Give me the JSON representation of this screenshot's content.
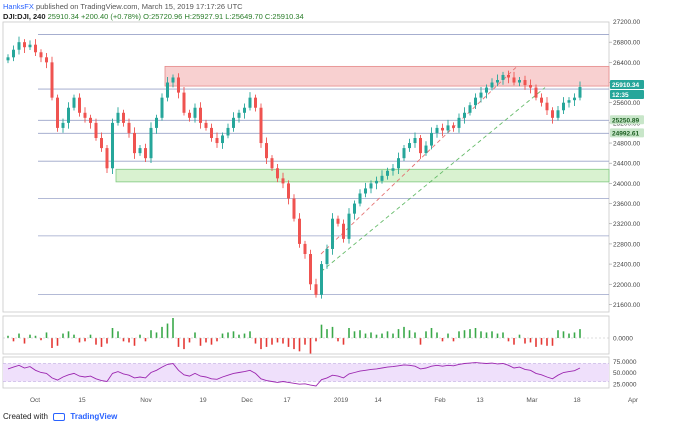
{
  "header": {
    "author": "HanksFX",
    "published_text": "published on TradingView.com, March 15, 2019 17:17:26 UTC",
    "symbol": "DJI:DJI, 240",
    "last": "25910.34",
    "change": "+200.40 (+0.78%)",
    "ohlc": "O:25720.96 H:25927.91 L:25649.70 C:25910.34"
  },
  "footer": {
    "created_with": "Created with",
    "brand": "TradingView"
  },
  "colors": {
    "up": "#26a69a",
    "down": "#ef5350",
    "up_bar": "#3aa94a",
    "down_bar": "#e53935",
    "resistance_zone": "#f8d0d0",
    "support_zone": "#d9f2d0",
    "rsi_band": "#efe0fb",
    "rsi_line": "#9c27b0"
  },
  "chart_data": [
    {
      "type": "candlestick",
      "title": "",
      "price_axis_ticks": [
        26800,
        26400,
        26000,
        25600,
        25200,
        24800,
        24400,
        24000,
        23600,
        23200,
        22800,
        22400,
        22000,
        21600
      ],
      "top_tick_label": "27200.00",
      "time_axis_ticks": [
        "Oct",
        "15",
        "Nov",
        "19",
        "Dec",
        "17",
        "2019",
        "14",
        "Feb",
        "13",
        "Mar",
        "18",
        "Apr"
      ],
      "price_labels": [
        {
          "value": "25910.34",
          "kind": "last"
        },
        {
          "value": "12:35",
          "kind": "countdown"
        },
        {
          "value": "25250.89",
          "kind": "level"
        },
        {
          "value": "24992.61",
          "kind": "level"
        }
      ],
      "horizontal_levels": [
        26951,
        25870,
        25250.89,
        24992.61,
        24440,
        23700,
        22960,
        21800
      ],
      "zones": [
        {
          "name": "resistance",
          "low": 25930,
          "high": 26320,
          "start_label": "Nov"
        },
        {
          "name": "support",
          "low": 24030,
          "high": 24280,
          "start_label": "15"
        }
      ],
      "channel_upper": [
        [
          22600,
          "Dec 24"
        ],
        [
          26300,
          "Feb 25"
        ]
      ],
      "channel_lower": [
        [
          22250,
          "Dec 24"
        ],
        [
          25900,
          "Mar 8"
        ]
      ],
      "close_path": [
        26500,
        26650,
        26800,
        26700,
        26750,
        26600,
        26500,
        26400,
        25700,
        25100,
        25200,
        25500,
        25700,
        25400,
        25300,
        25200,
        24900,
        24700,
        24300,
        25200,
        25400,
        25200,
        25000,
        24600,
        24700,
        24500,
        25100,
        25300,
        25700,
        26000,
        26100,
        25800,
        25400,
        25300,
        25500,
        25200,
        25100,
        24900,
        24800,
        24950,
        25100,
        25300,
        25400,
        25500,
        25700,
        25500,
        24800,
        24500,
        24300,
        24100,
        24000,
        23700,
        23300,
        22800,
        22600,
        22000,
        21790,
        22400,
        22700,
        23300,
        23200,
        22900,
        23400,
        23600,
        23800,
        23900,
        24000,
        24050,
        24150,
        24250,
        24300,
        24500,
        24700,
        24800,
        24900,
        24600,
        24750,
        25000,
        25100,
        25050,
        25150,
        25100,
        25300,
        25400,
        25550,
        25700,
        25800,
        25900,
        26000,
        26050,
        26150,
        26100,
        26000,
        26050,
        25950,
        25900,
        25700,
        25600,
        25450,
        25300,
        25450,
        25600,
        25650,
        25700,
        25910.34
      ]
    },
    {
      "type": "histogram",
      "title": "",
      "tick_label": "0.0000",
      "values": [
        0.2,
        -0.3,
        0.4,
        -0.5,
        0.3,
        0.2,
        -0.2,
        0.5,
        -0.9,
        -0.7,
        0.4,
        0.6,
        0.3,
        -0.4,
        -0.3,
        0.3,
        -0.6,
        -0.8,
        -0.5,
        0.9,
        0.6,
        -0.3,
        -0.4,
        -0.7,
        0.3,
        -0.3,
        0.7,
        0.5,
        1.0,
        1.3,
        1.8,
        -0.8,
        -1.0,
        -0.4,
        0.5,
        -0.7,
        -0.4,
        -0.6,
        -0.3,
        0.4,
        0.5,
        0.6,
        0.3,
        0.4,
        0.6,
        -0.5,
        -1.0,
        -0.8,
        -0.6,
        -0.4,
        -0.5,
        -0.8,
        -1.0,
        -1.2,
        -0.6,
        -1.4,
        -0.3,
        1.2,
        0.8,
        1.0,
        -0.3,
        -0.6,
        0.9,
        0.6,
        0.7,
        0.4,
        0.5,
        0.3,
        0.4,
        0.6,
        0.4,
        0.8,
        1.0,
        0.7,
        0.5,
        -0.6,
        0.6,
        0.9,
        0.5,
        -0.3,
        0.4,
        -0.3,
        0.6,
        0.7,
        0.8,
        0.9,
        0.6,
        0.5,
        0.6,
        0.4,
        0.5,
        -0.3,
        -0.6,
        0.3,
        -0.5,
        -0.4,
        -0.8,
        -0.6,
        -0.7,
        -0.7,
        0.7,
        0.6,
        0.4,
        0.5,
        0.8
      ]
    },
    {
      "type": "line",
      "title": "",
      "y_ticks": [
        75,
        50,
        25
      ],
      "y_tick_labels": [
        "75.0000",
        "50.0000",
        "25.0000"
      ],
      "band": [
        30,
        70
      ],
      "values": [
        58,
        62,
        66,
        60,
        63,
        55,
        50,
        48,
        38,
        33,
        40,
        45,
        48,
        42,
        40,
        42,
        36,
        32,
        30,
        48,
        52,
        47,
        44,
        38,
        40,
        38,
        50,
        55,
        62,
        68,
        70,
        55,
        45,
        42,
        48,
        42,
        40,
        36,
        35,
        40,
        44,
        48,
        50,
        52,
        55,
        48,
        36,
        32,
        30,
        28,
        30,
        28,
        26,
        24,
        25,
        22,
        20,
        34,
        38,
        44,
        42,
        38,
        47,
        50,
        53,
        55,
        57,
        58,
        60,
        62,
        63,
        65,
        67,
        66,
        64,
        58,
        60,
        64,
        66,
        64,
        66,
        65,
        68,
        70,
        71,
        72,
        71,
        70,
        71,
        69,
        70,
        66,
        60,
        62,
        57,
        55,
        48,
        45,
        40,
        36,
        44,
        50,
        52,
        54,
        60
      ]
    }
  ]
}
